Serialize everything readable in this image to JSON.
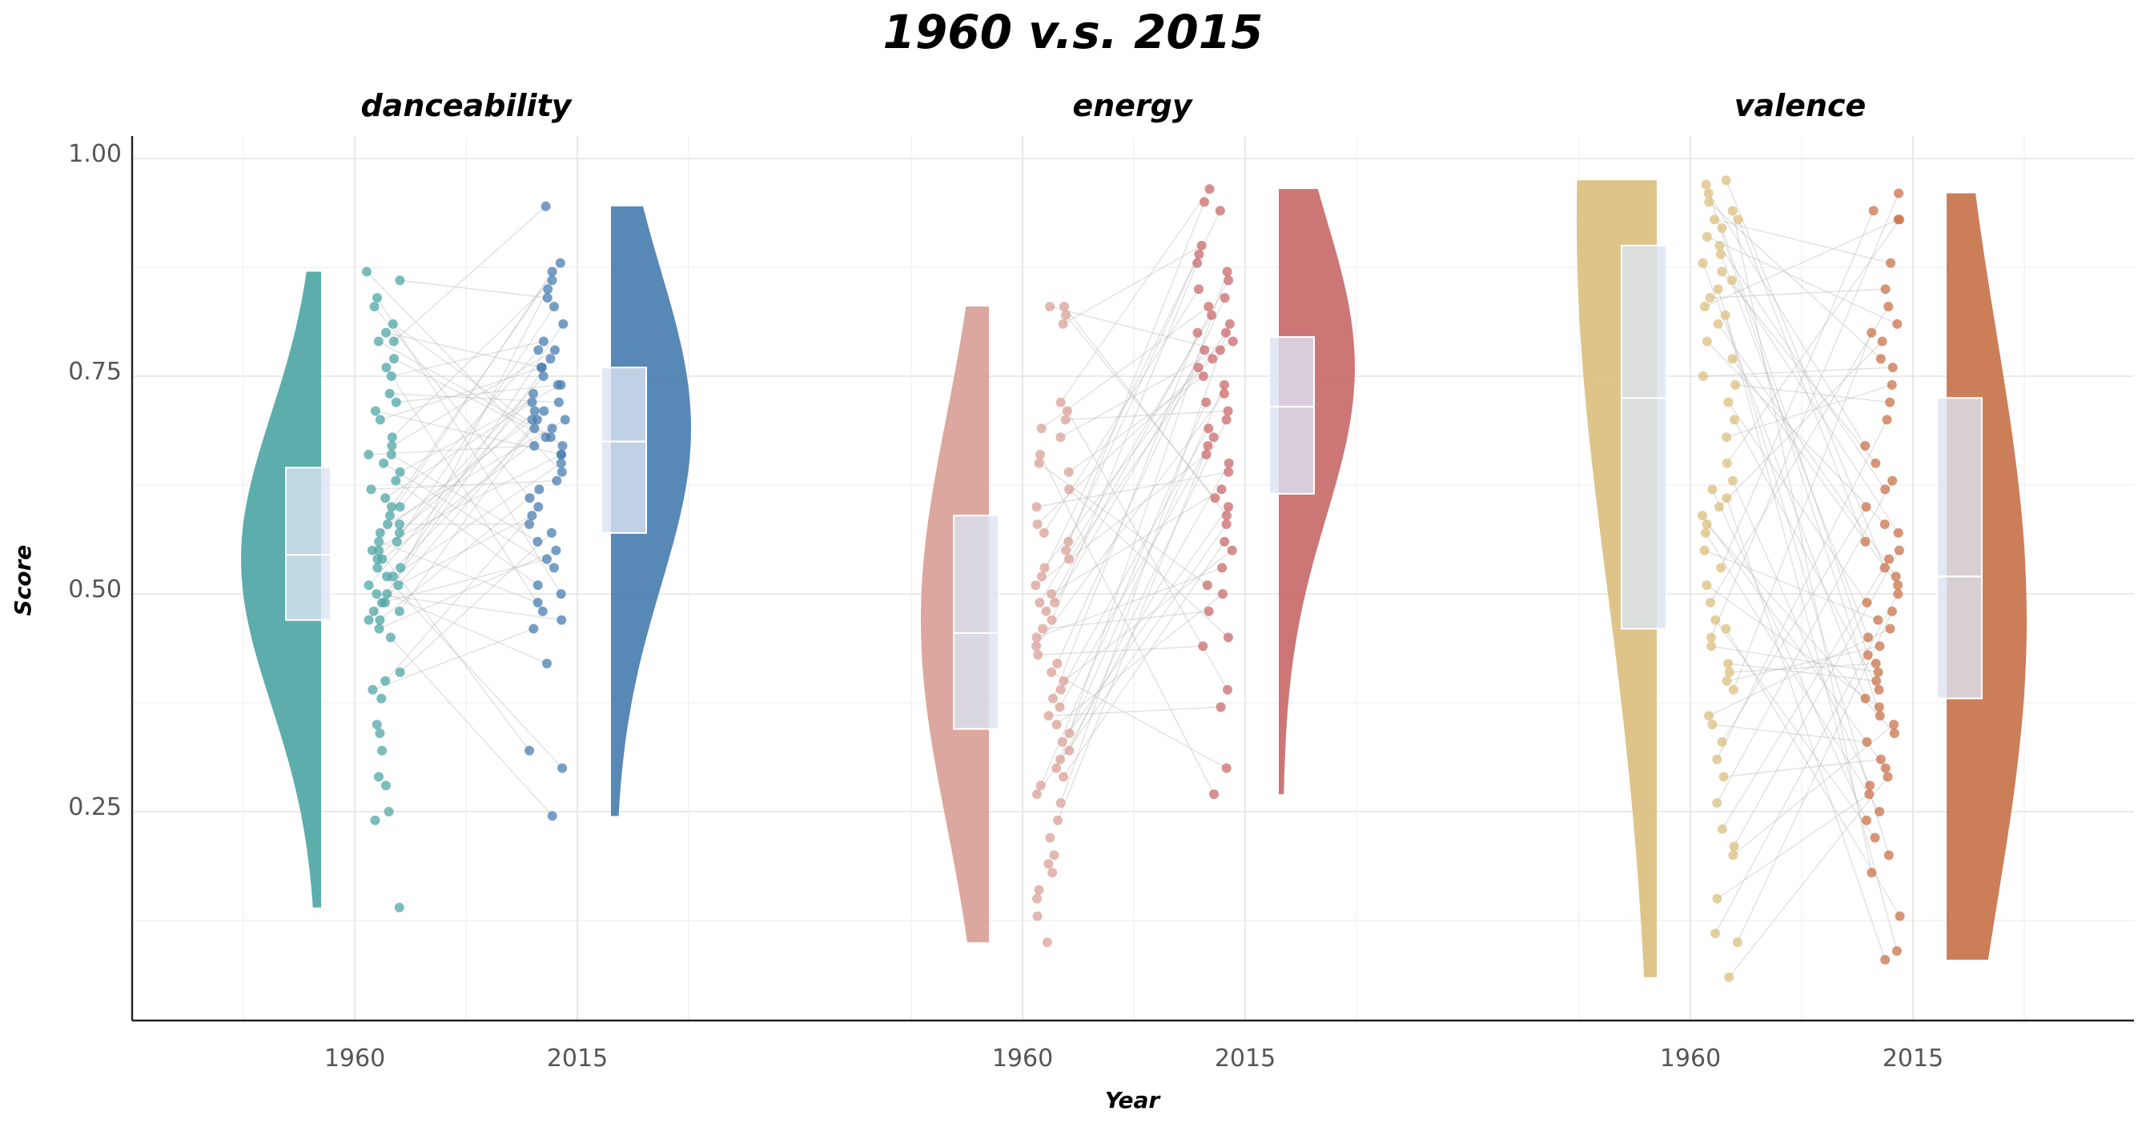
{
  "chart_data": {
    "type": "raincloud",
    "title": "1960 v.s. 2015",
    "xlabel": "Year",
    "ylabel": "Score",
    "yticks": [
      "0.25",
      "0.50",
      "0.75",
      "1.00"
    ],
    "ytick_values": [
      0.25,
      0.5,
      0.75,
      1.0
    ],
    "ylim": [
      0.06,
      1.03
    ],
    "grid": true,
    "facets": [
      {
        "name": "danceability",
        "xticks": [
          "1960",
          "2015"
        ],
        "colors": {
          "1960": "#4fa6a6",
          "2015": "#4a7eb0"
        },
        "groups": [
          {
            "year": "1960",
            "min": 0.14,
            "q1": 0.47,
            "median": 0.545,
            "q3": 0.645,
            "max": 0.87,
            "mode": 0.54,
            "mode_density": 1.0
          },
          {
            "year": "2015",
            "min": 0.245,
            "q1": 0.57,
            "median": 0.675,
            "q3": 0.76,
            "max": 0.945,
            "mode": 0.69,
            "mode_density": 1.0
          }
        ],
        "points_1960": [
          0.87,
          0.86,
          0.84,
          0.83,
          0.81,
          0.8,
          0.79,
          0.79,
          0.77,
          0.76,
          0.75,
          0.73,
          0.72,
          0.71,
          0.7,
          0.68,
          0.67,
          0.66,
          0.66,
          0.65,
          0.64,
          0.63,
          0.62,
          0.61,
          0.6,
          0.6,
          0.59,
          0.58,
          0.58,
          0.57,
          0.57,
          0.56,
          0.56,
          0.55,
          0.55,
          0.54,
          0.54,
          0.53,
          0.53,
          0.52,
          0.52,
          0.51,
          0.51,
          0.5,
          0.5,
          0.49,
          0.49,
          0.48,
          0.48,
          0.47,
          0.47,
          0.46,
          0.45,
          0.41,
          0.4,
          0.39,
          0.38,
          0.35,
          0.34,
          0.32,
          0.29,
          0.28,
          0.25,
          0.24,
          0.14
        ],
        "points_2015": [
          0.945,
          0.88,
          0.87,
          0.86,
          0.85,
          0.84,
          0.83,
          0.81,
          0.79,
          0.78,
          0.78,
          0.77,
          0.76,
          0.76,
          0.75,
          0.74,
          0.74,
          0.73,
          0.72,
          0.72,
          0.71,
          0.71,
          0.7,
          0.7,
          0.7,
          0.69,
          0.69,
          0.68,
          0.68,
          0.67,
          0.67,
          0.66,
          0.66,
          0.65,
          0.64,
          0.63,
          0.62,
          0.61,
          0.6,
          0.59,
          0.58,
          0.57,
          0.56,
          0.55,
          0.54,
          0.53,
          0.51,
          0.5,
          0.49,
          0.48,
          0.47,
          0.46,
          0.42,
          0.32,
          0.3,
          0.245
        ]
      },
      {
        "name": "energy",
        "xticks": [
          "1960",
          "2015"
        ],
        "colors": {
          "1960": "#d9a096",
          "2015": "#c96a6a"
        },
        "groups": [
          {
            "year": "1960",
            "min": 0.1,
            "q1": 0.345,
            "median": 0.455,
            "q3": 0.59,
            "max": 0.83,
            "mode": 0.47,
            "mode_density": 0.85
          },
          {
            "year": "2015",
            "min": 0.27,
            "q1": 0.615,
            "median": 0.715,
            "q3": 0.795,
            "max": 0.965,
            "mode": 0.76,
            "mode_density": 0.95
          }
        ],
        "points_1960": [
          0.83,
          0.83,
          0.82,
          0.81,
          0.72,
          0.71,
          0.7,
          0.69,
          0.68,
          0.66,
          0.65,
          0.64,
          0.62,
          0.6,
          0.58,
          0.57,
          0.56,
          0.55,
          0.54,
          0.53,
          0.52,
          0.51,
          0.5,
          0.49,
          0.49,
          0.48,
          0.47,
          0.46,
          0.45,
          0.44,
          0.43,
          0.42,
          0.41,
          0.4,
          0.39,
          0.38,
          0.37,
          0.36,
          0.35,
          0.34,
          0.33,
          0.32,
          0.31,
          0.3,
          0.29,
          0.28,
          0.27,
          0.26,
          0.24,
          0.22,
          0.2,
          0.19,
          0.18,
          0.16,
          0.15,
          0.13,
          0.1
        ],
        "points_2015": [
          0.965,
          0.95,
          0.94,
          0.9,
          0.89,
          0.88,
          0.87,
          0.86,
          0.85,
          0.84,
          0.83,
          0.82,
          0.81,
          0.8,
          0.8,
          0.79,
          0.78,
          0.78,
          0.77,
          0.76,
          0.75,
          0.74,
          0.73,
          0.72,
          0.71,
          0.7,
          0.69,
          0.68,
          0.67,
          0.66,
          0.65,
          0.64,
          0.62,
          0.61,
          0.6,
          0.59,
          0.58,
          0.56,
          0.55,
          0.53,
          0.51,
          0.5,
          0.48,
          0.45,
          0.44,
          0.39,
          0.37,
          0.3,
          0.27
        ]
      },
      {
        "name": "valence",
        "xticks": [
          "1960",
          "2015"
        ],
        "colors": {
          "1960": "#dbbf7f",
          "2015": "#c8734a"
        },
        "groups": [
          {
            "year": "1960",
            "min": 0.06,
            "q1": 0.46,
            "median": 0.725,
            "q3": 0.9,
            "max": 0.975,
            "mode": 0.93,
            "mode_density": 1.0
          },
          {
            "year": "2015",
            "min": 0.08,
            "q1": 0.38,
            "median": 0.52,
            "q3": 0.725,
            "max": 0.96,
            "mode": 0.47,
            "mode_density": 1.0
          }
        ],
        "points_1960": [
          0.975,
          0.97,
          0.96,
          0.95,
          0.94,
          0.93,
          0.93,
          0.92,
          0.91,
          0.9,
          0.89,
          0.88,
          0.87,
          0.86,
          0.85,
          0.84,
          0.83,
          0.82,
          0.81,
          0.79,
          0.77,
          0.75,
          0.74,
          0.72,
          0.7,
          0.68,
          0.65,
          0.63,
          0.62,
          0.61,
          0.6,
          0.59,
          0.58,
          0.57,
          0.55,
          0.53,
          0.51,
          0.49,
          0.47,
          0.46,
          0.45,
          0.44,
          0.42,
          0.41,
          0.4,
          0.39,
          0.36,
          0.35,
          0.33,
          0.31,
          0.29,
          0.26,
          0.23,
          0.21,
          0.2,
          0.15,
          0.11,
          0.1,
          0.06
        ],
        "points_2015": [
          0.96,
          0.94,
          0.93,
          0.93,
          0.88,
          0.85,
          0.83,
          0.81,
          0.8,
          0.79,
          0.77,
          0.76,
          0.74,
          0.72,
          0.7,
          0.67,
          0.65,
          0.63,
          0.62,
          0.6,
          0.58,
          0.57,
          0.56,
          0.55,
          0.54,
          0.53,
          0.52,
          0.51,
          0.5,
          0.49,
          0.48,
          0.47,
          0.46,
          0.45,
          0.44,
          0.43,
          0.42,
          0.41,
          0.4,
          0.39,
          0.38,
          0.37,
          0.36,
          0.35,
          0.34,
          0.33,
          0.31,
          0.3,
          0.29,
          0.28,
          0.27,
          0.25,
          0.24,
          0.22,
          0.2,
          0.18,
          0.13,
          0.09,
          0.08
        ]
      }
    ]
  }
}
